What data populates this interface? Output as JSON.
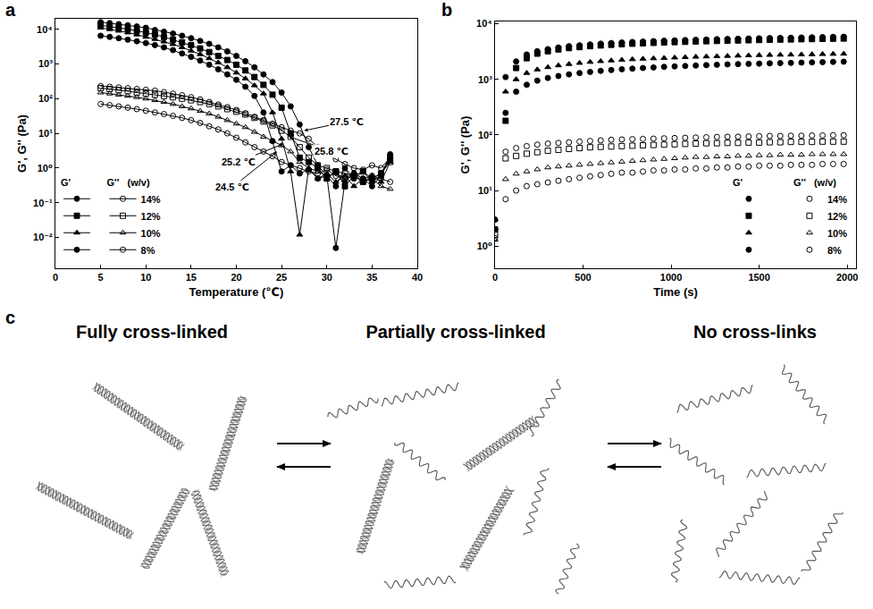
{
  "chart_data": [
    {
      "panel": "a",
      "type": "line",
      "x_label": "Temperature (℃)",
      "y_label": "G', G'' (Pa)",
      "log": "y",
      "grid": false,
      "legend": "lower left",
      "legend_header": [
        "G'",
        "G''",
        "(w/v)"
      ],
      "xlim": [
        0,
        40
      ],
      "xticks": [
        0,
        5,
        10,
        15,
        20,
        25,
        30,
        35,
        40
      ],
      "ylim": [
        0.0013,
        20000
      ],
      "yticks": [
        {
          "value": 0.01,
          "label": "10⁻²"
        },
        {
          "value": 0.1,
          "label": "10⁻¹"
        },
        {
          "value": 1,
          "label": "10⁰"
        },
        {
          "value": 10,
          "label": "10¹"
        },
        {
          "value": 100,
          "label": "10²"
        },
        {
          "value": 1000,
          "label": "10³"
        },
        {
          "value": 10000,
          "label": "10⁴"
        }
      ],
      "x": [
        5,
        6,
        7,
        8,
        9,
        10,
        11,
        12,
        13,
        14,
        15,
        16,
        17,
        18,
        19,
        20,
        21,
        22,
        23,
        24,
        25,
        26,
        27,
        28,
        29,
        30,
        31,
        32,
        33,
        34,
        35,
        36,
        37
      ],
      "series": [
        {
          "name": "14%",
          "modulus": "G'",
          "color": "#000000",
          "marker": "circle",
          "line_style": "solid",
          "values": [
            16000,
            15000,
            14000,
            13000,
            12000,
            11000,
            9500,
            8500,
            7500,
            6500,
            5500,
            4600,
            3800,
            3000,
            2300,
            1700,
            1200,
            800,
            500,
            300,
            150,
            60,
            18,
            4,
            1.2,
            0.6,
            0.3,
            1.0,
            0.5,
            0.8,
            0.4,
            0.6,
            2.5
          ]
        },
        {
          "name": "12%",
          "modulus": "G'",
          "color": "#000000",
          "marker": "square",
          "line_style": "solid",
          "values": [
            13000,
            12000,
            11000,
            10000,
            9000,
            8000,
            7000,
            6000,
            5000,
            4200,
            3500,
            2800,
            2200,
            1700,
            1300,
            950,
            650,
            420,
            250,
            130,
            55,
            10,
            2,
            1.5,
            1.0,
            0.5,
            0.8,
            0.3,
            0.6,
            0.4,
            0.5,
            0.7,
            2.0
          ]
        },
        {
          "name": "10%",
          "modulus": "G'",
          "color": "#000000",
          "marker": "triangle-up",
          "line_style": "solid",
          "values": [
            11000,
            10000,
            9000,
            8000,
            7000,
            6000,
            5200,
            4400,
            3700,
            3000,
            2400,
            1900,
            1450,
            1100,
            800,
            560,
            380,
            240,
            140,
            40,
            7,
            0.8,
            0.012,
            1.0,
            0.5,
            0.7,
            0.4,
            0.6,
            0.3,
            0.5,
            0.6,
            0.4,
            1.5
          ]
        },
        {
          "name": "8%",
          "modulus": "G'",
          "color": "#000000",
          "marker": "circle",
          "line_style": "solid",
          "values": [
            6500,
            6000,
            5500,
            5000,
            4500,
            4000,
            3500,
            3000,
            2500,
            2000,
            1600,
            1250,
            950,
            700,
            500,
            350,
            220,
            120,
            40,
            6,
            0.8,
            1.2,
            0.7,
            0.9,
            0.5,
            0.6,
            0.005,
            0.4,
            0.7,
            0.5,
            0.3,
            0.6,
            2.0
          ]
        },
        {
          "name": "14%",
          "modulus": "G''",
          "color": "#000000",
          "marker": "circle-open",
          "line_style": "solid",
          "values": [
            230,
            220,
            210,
            200,
            190,
            180,
            170,
            155,
            140,
            125,
            110,
            95,
            80,
            68,
            57,
            47,
            38,
            30,
            24,
            19,
            15,
            12,
            10,
            7,
            4,
            2.5,
            1.8,
            1.3,
            1.0,
            0.9,
            1.2,
            1.0,
            2.0
          ]
        },
        {
          "name": "12%",
          "modulus": "G''",
          "color": "#000000",
          "marker": "square-open",
          "line_style": "solid",
          "values": [
            200,
            190,
            175,
            165,
            150,
            140,
            130,
            120,
            110,
            100,
            90,
            80,
            70,
            60,
            50,
            42,
            35,
            28,
            22,
            17,
            12,
            8,
            4,
            2,
            1.2,
            1.0,
            0.8,
            0.7,
            0.6,
            0.8,
            0.5,
            0.7,
            1.5
          ]
        },
        {
          "name": "10%",
          "modulus": "G''",
          "color": "#000000",
          "marker": "triangle-up-open",
          "line_style": "solid",
          "values": [
            150,
            140,
            130,
            120,
            110,
            100,
            90,
            80,
            70,
            60,
            52,
            44,
            37,
            30,
            24,
            19,
            15,
            11,
            8,
            6,
            4.5,
            3,
            1.5,
            1.0,
            0.8,
            0.6,
            0.7,
            0.5,
            0.6,
            0.4,
            0.5,
            0.3,
            0.25
          ]
        },
        {
          "name": "8%",
          "modulus": "G''",
          "color": "#000000",
          "marker": "circle-open",
          "line_style": "solid",
          "values": [
            70,
            65,
            60,
            55,
            50,
            45,
            40,
            36,
            32,
            28,
            24,
            20,
            16,
            13,
            10,
            7.5,
            5.5,
            4,
            3,
            2.2,
            1.5,
            1.2,
            1.0,
            0.8,
            0.7,
            0.9,
            0.6,
            0.5,
            0.7,
            0.4,
            0.6,
            0.5,
            0.4
          ]
        }
      ],
      "annotations": [
        {
          "text": "27.5 ℃",
          "x": 27.5,
          "y": 12
        },
        {
          "text": "25.8 ℃",
          "x": 25.8,
          "y": 8
        },
        {
          "text": "25.2 ℃",
          "x": 25.2,
          "y": 5
        },
        {
          "text": "24.5 ℃",
          "x": 24.5,
          "y": 3
        }
      ]
    },
    {
      "panel": "b",
      "type": "scatter",
      "x_label": "Time (s)",
      "y_label": "G', G'' (Pa)",
      "log": "y",
      "grid": false,
      "legend": "lower right",
      "legend_header": [
        "G'",
        "G''",
        "(w/v)"
      ],
      "xlim": [
        0,
        2050
      ],
      "xticks": [
        0,
        500,
        1000,
        1500,
        2000
      ],
      "ylim": [
        0.4,
        11000
      ],
      "yticks": [
        {
          "value": 1,
          "label": "10⁰"
        },
        {
          "value": 10,
          "label": "10¹"
        },
        {
          "value": 100,
          "label": "10²"
        },
        {
          "value": 1000,
          "label": "10³"
        },
        {
          "value": 10000,
          "label": "10⁴"
        }
      ],
      "x": [
        0,
        60,
        120,
        180,
        240,
        300,
        360,
        420,
        480,
        540,
        600,
        660,
        720,
        780,
        840,
        900,
        960,
        1020,
        1080,
        1140,
        1200,
        1260,
        1320,
        1380,
        1440,
        1500,
        1560,
        1620,
        1680,
        1740,
        1800,
        1860,
        1920,
        1980
      ],
      "series": [
        {
          "name": "14%",
          "modulus": "G'",
          "color": "#000000",
          "marker": "circle",
          "values": [
            3,
            1100,
            2100,
            2800,
            3200,
            3500,
            3750,
            3950,
            4100,
            4250,
            4380,
            4500,
            4600,
            4700,
            4790,
            4870,
            4950,
            5020,
            5090,
            5150,
            5210,
            5270,
            5320,
            5370,
            5420,
            5470,
            5520,
            5560,
            5600,
            5650,
            5700,
            5750,
            5800,
            5850
          ]
        },
        {
          "name": "12%",
          "modulus": "G'",
          "color": "#000000",
          "marker": "square",
          "values": [
            2,
            180,
            1600,
            2400,
            2900,
            3200,
            3450,
            3650,
            3800,
            3950,
            4070,
            4180,
            4280,
            4370,
            4450,
            4530,
            4600,
            4670,
            4730,
            4790,
            4850,
            4900,
            4950,
            5000,
            5050,
            5100,
            5140,
            5180,
            5220,
            5260,
            5300,
            5340,
            5380,
            5420
          ]
        },
        {
          "name": "10%",
          "modulus": "G'",
          "color": "#000000",
          "marker": "triangle-up",
          "values": [
            3,
            600,
            1000,
            1300,
            1500,
            1650,
            1780,
            1880,
            1970,
            2050,
            2120,
            2180,
            2240,
            2290,
            2340,
            2380,
            2420,
            2460,
            2500,
            2540,
            2570,
            2600,
            2630,
            2660,
            2690,
            2720,
            2740,
            2760,
            2780,
            2800,
            2820,
            2840,
            2860,
            2880
          ]
        },
        {
          "name": "8%",
          "modulus": "G'",
          "color": "#000000",
          "marker": "circle",
          "values": [
            2,
            250,
            600,
            800,
            950,
            1060,
            1150,
            1230,
            1300,
            1360,
            1420,
            1470,
            1520,
            1560,
            1600,
            1640,
            1680,
            1710,
            1740,
            1770,
            1800,
            1830,
            1860,
            1880,
            1900,
            1920,
            1940,
            1960,
            1980,
            2000,
            2020,
            2040,
            2060,
            2080
          ]
        },
        {
          "name": "14%",
          "modulus": "G''",
          "color": "#000000",
          "marker": "circle-open",
          "values": [
            2,
            50,
            58,
            63,
            67,
            70,
            72,
            74,
            76,
            78,
            80,
            82,
            83,
            84,
            85,
            86,
            87,
            88,
            89,
            90,
            91,
            92,
            93,
            93,
            94,
            95,
            96,
            96,
            97,
            97,
            98,
            98,
            99,
            99
          ]
        },
        {
          "name": "12%",
          "modulus": "G''",
          "color": "#000000",
          "marker": "square-open",
          "values": [
            1.6,
            38,
            42,
            46,
            49,
            52,
            54,
            56,
            58,
            60,
            61,
            62,
            63,
            64,
            65,
            66,
            67,
            68,
            69,
            70,
            71,
            71,
            72,
            72,
            73,
            73,
            74,
            74,
            75,
            75,
            75,
            76,
            76,
            76
          ]
        },
        {
          "name": "10%",
          "modulus": "G''",
          "color": "#000000",
          "marker": "triangle-up-open",
          "values": [
            1.3,
            16,
            20,
            22,
            24,
            26,
            27,
            28,
            29,
            30,
            31,
            32,
            33,
            34,
            35,
            36,
            37,
            38,
            39,
            40,
            40,
            41,
            41,
            42,
            42,
            43,
            43,
            44,
            44,
            44,
            45,
            45,
            45,
            45
          ]
        },
        {
          "name": "8%",
          "modulus": "G''",
          "color": "#000000",
          "marker": "circle-open",
          "values": [
            1.4,
            7,
            10,
            12,
            13,
            14,
            15,
            16,
            17,
            18,
            19,
            20,
            21,
            21,
            22,
            23,
            23,
            24,
            24,
            25,
            25,
            26,
            26,
            27,
            27,
            28,
            28,
            28,
            29,
            29,
            29,
            30,
            30,
            30
          ]
        }
      ]
    }
  ],
  "diagram": {
    "panel": "c",
    "stages": [
      "Fully cross-linked",
      "Partially cross-linked",
      "No cross-links"
    ]
  }
}
